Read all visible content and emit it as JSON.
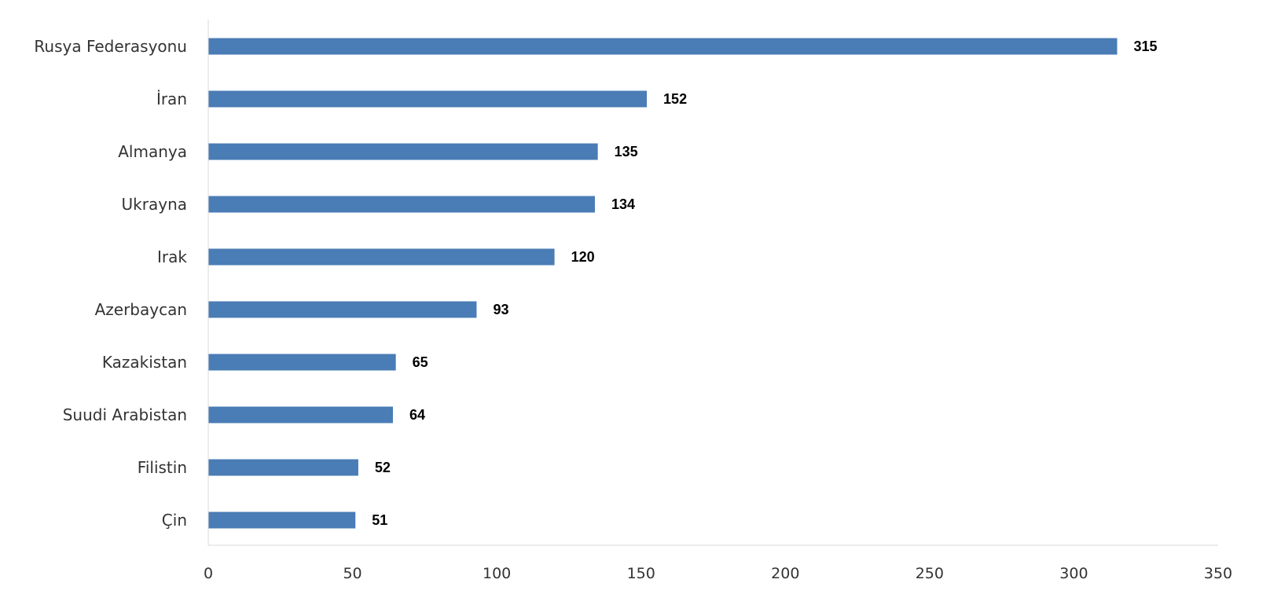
{
  "chart_data": {
    "type": "bar",
    "orientation": "horizontal",
    "categories": [
      "Rusya Federasyonu",
      "İran",
      "Almanya",
      "Ukrayna",
      "Irak",
      "Azerbaycan",
      "Kazakistan",
      "Suudi Arabistan",
      "Filistin",
      "Çin"
    ],
    "values": [
      315,
      152,
      135,
      134,
      120,
      93,
      65,
      64,
      52,
      51
    ],
    "data_labels": [
      "315",
      "152",
      "135",
      "134",
      "120",
      "93",
      "65",
      "64",
      "52",
      "51"
    ],
    "title": "",
    "xlabel": "",
    "ylabel": "",
    "xlim": [
      0,
      350
    ],
    "xticks": [
      0,
      50,
      100,
      150,
      200,
      250,
      300,
      350
    ],
    "tick_labels": [
      "0",
      "50",
      "100",
      "150",
      "200",
      "250",
      "300",
      "350"
    ],
    "grid": false,
    "legend": "none",
    "colors": {
      "bar": "#4a7cb5",
      "axis": "#d9d9d9",
      "label_text": "#333333",
      "data_label_text": "#000000"
    }
  }
}
